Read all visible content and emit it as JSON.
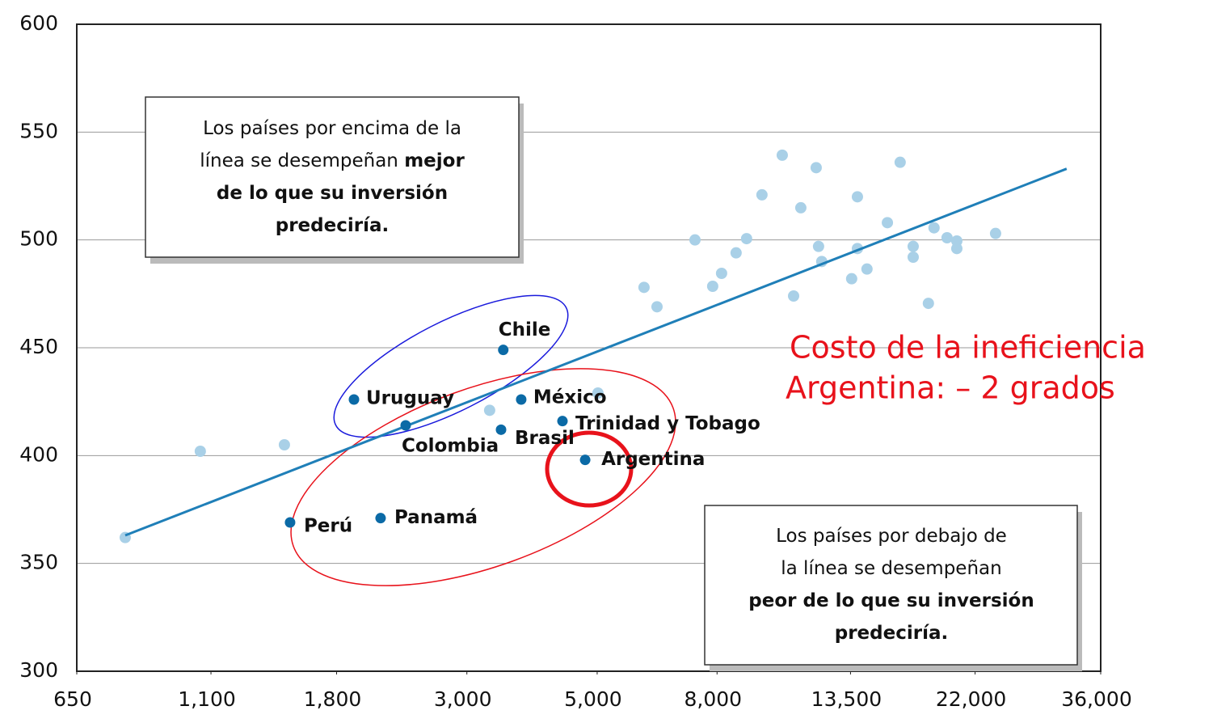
{
  "chart_data": {
    "type": "scatter",
    "xlim": [
      650,
      36000
    ],
    "ylim": [
      300,
      600
    ],
    "xscale": "log",
    "xticks": [
      650,
      {
        "value": 1100,
        "label": "1,100"
      },
      {
        "value": 1800,
        "label": "1,800"
      },
      {
        "value": 3000,
        "label": "3,000"
      },
      {
        "value": 5000,
        "label": "5,000"
      },
      {
        "value": 8000,
        "label": "8,000"
      },
      {
        "value": 13500,
        "label": "13,500"
      },
      {
        "value": 22000,
        "label": "22,000"
      },
      {
        "value": 36000,
        "label": "36,000"
      }
    ],
    "yticks": [
      300,
      350,
      400,
      450,
      500,
      550,
      600
    ],
    "grid": true,
    "highlight_color": "#0b6aa6",
    "points": [
      {
        "label": "Chile",
        "x": 3460,
        "y": 449
      },
      {
        "label": "Uruguay",
        "x": 1927,
        "y": 426
      },
      {
        "label": "México",
        "x": 3712,
        "y": 426
      },
      {
        "label": "Colombia",
        "x": 2360,
        "y": 414
      },
      {
        "label": "Brasil",
        "x": 3430,
        "y": 412
      },
      {
        "label": "Trinidad y Tobago",
        "x": 4364,
        "y": 416
      },
      {
        "label": "Argentina",
        "x": 4770,
        "y": 398
      },
      {
        "label": "Perú",
        "x": 1500,
        "y": 369
      },
      {
        "label": "Panamá",
        "x": 2139,
        "y": 371
      }
    ],
    "background_points": {
      "color": "#a9d0e7",
      "x": [
        786,
        1055,
        1467,
        3280,
        5015,
        6008,
        6322,
        7337,
        7864,
        8143,
        8620,
        8982,
        9540,
        10330,
        10800,
        11110,
        11800,
        11910,
        12060,
        13560,
        13870,
        13870,
        14400,
        15600,
        16400,
        17260,
        17260,
        18320,
        18730,
        19710,
        20480,
        20480,
        23840
      ],
      "y": [
        362,
        402,
        405,
        421,
        429,
        478,
        469,
        500,
        478.5,
        484.5,
        494,
        500.6,
        520.9,
        539.3,
        474,
        514.9,
        533.5,
        497,
        490,
        482,
        520,
        496,
        486.5,
        508,
        536,
        497,
        492,
        470.6,
        505.6,
        501,
        499.5,
        496,
        503
      ]
    },
    "trend_line": {
      "color": "#1f7fb8",
      "x": [
        786,
        31500
      ],
      "y": [
        363,
        533
      ]
    },
    "annotations": [
      {
        "lines": [
          {
            "text": "Los países por encima de la",
            "bold": ""
          },
          {
            "text": "línea se desempeñan ",
            "bold": "mejor"
          },
          {
            "text": "",
            "bold": "de lo que su inversión"
          },
          {
            "text": "",
            "bold": "predeciría."
          }
        ]
      },
      {
        "lines": [
          {
            "text": "Los países por debajo de",
            "bold": ""
          },
          {
            "text": "la línea se desempeñan",
            "bold": ""
          },
          {
            "text": "",
            "bold": "peor de lo que su inversión"
          },
          {
            "text": "",
            "bold": "predeciría."
          }
        ]
      }
    ],
    "note": [
      "Costo de la ineficiencia",
      "Argentina: – 2 grados"
    ]
  }
}
